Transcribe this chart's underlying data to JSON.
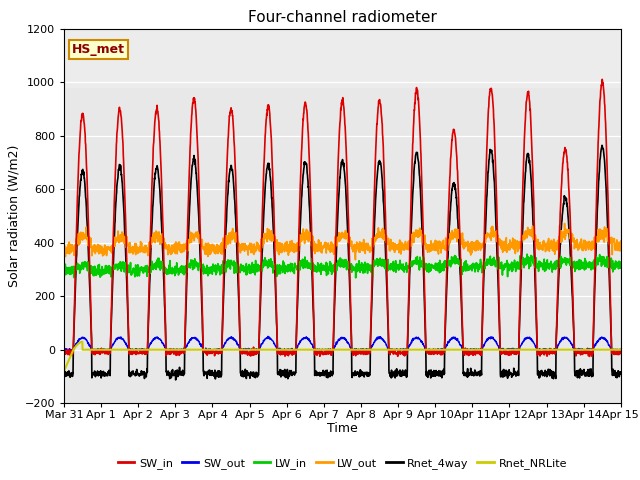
{
  "title": "Four-channel radiometer",
  "xlabel": "Time",
  "ylabel": "Solar radiation (W/m2)",
  "ylim": [
    -200,
    1200
  ],
  "annotation_text": "HS_met",
  "annotation_bg": "#ffffcc",
  "annotation_border": "#cc8800",
  "plot_bg": "#e8e8e8",
  "series": {
    "SW_in": {
      "color": "#dd0000",
      "lw": 1.2
    },
    "SW_out": {
      "color": "#0000ee",
      "lw": 1.0
    },
    "LW_in": {
      "color": "#00cc00",
      "lw": 1.2
    },
    "LW_out": {
      "color": "#ff9900",
      "lw": 1.2
    },
    "Rnet_4way": {
      "color": "#000000",
      "lw": 1.2
    },
    "Rnet_NRLite": {
      "color": "#cccc00",
      "lw": 1.5
    }
  },
  "x_tick_labels": [
    "Mar 31",
    "Apr 1",
    "Apr 2",
    "Apr 3",
    "Apr 4",
    "Apr 5",
    "Apr 6",
    "Apr 7",
    "Apr 8",
    "Apr 9",
    "Apr 10",
    "Apr 11",
    "Apr 12",
    "Apr 13",
    "Apr 14",
    "Apr 15"
  ],
  "num_days": 15,
  "pts_per_day": 144
}
